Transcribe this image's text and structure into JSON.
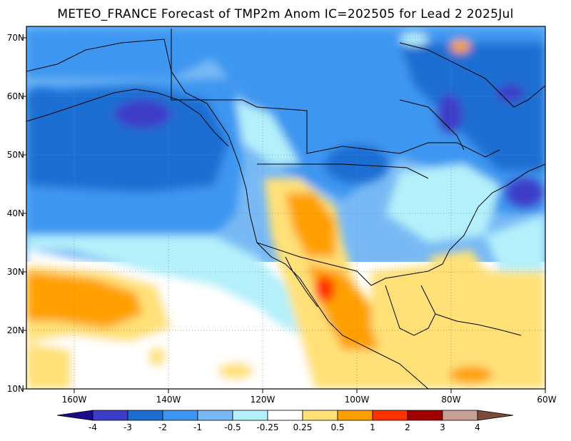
{
  "title": "METEO_FRANCE Forecast of TMP2m Anom IC=202505 for Lead 2 2025Jul",
  "lat_labels": [
    "70N",
    "60N",
    "50N",
    "40N",
    "30N",
    "20N",
    "10N"
  ],
  "lon_labels": [
    "160W",
    "140W",
    "120W",
    "100W",
    "80W",
    "60W"
  ],
  "map_extent": {
    "lon_min": -170,
    "lon_max": -60,
    "lat_min": 10,
    "lat_max": 72
  },
  "colorbar": {
    "labels": [
      "-4",
      "-3",
      "-2",
      "-1",
      "-0.5",
      "-0.25",
      "0.25",
      "0.5",
      "1",
      "2",
      "3",
      "4"
    ],
    "colors": [
      "#1a0a8c",
      "#3c3cc8",
      "#1e6ed2",
      "#3c96f0",
      "#78b9f5",
      "#b4f0fa",
      "#ffffff",
      "#ffe178",
      "#ffa000",
      "#ff3200",
      "#a00000",
      "#c8a096",
      "#7b4a3a"
    ]
  }
}
